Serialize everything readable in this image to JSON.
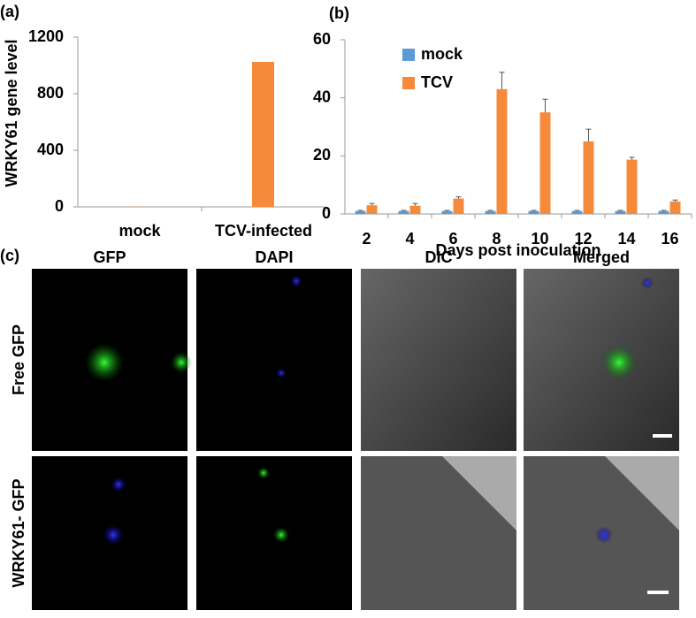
{
  "chart_data": [
    {
      "type": "bar",
      "panel_label": "(a)",
      "y_label": "WRKY61 gene level",
      "categories": [
        "mock",
        "TCV-infected"
      ],
      "values": [
        1,
        1025
      ],
      "color": "#f58b3a",
      "ylim": [
        0,
        1200
      ],
      "yticks": [
        0,
        400,
        800,
        1200
      ]
    },
    {
      "type": "bar",
      "panel_label": "(b)",
      "x_label": "Days post inoculation",
      "categories": [
        "2",
        "4",
        "6",
        "8",
        "10",
        "12",
        "14",
        "16"
      ],
      "series": [
        {
          "name": "mock",
          "color": "#5b9bd5",
          "values": [
            1,
            1,
            1,
            1,
            1,
            1,
            1,
            1
          ],
          "errors": [
            0.2,
            0.2,
            0.2,
            0.2,
            0.2,
            0.2,
            0.2,
            0.2
          ]
        },
        {
          "name": "TCV",
          "color": "#f58b3a",
          "values": [
            3,
            2.8,
            5.3,
            43,
            35,
            25,
            18.7,
            4.3
          ],
          "errors": [
            0.6,
            0.8,
            0.6,
            5.8,
            4.5,
            4.2,
            0.8,
            0.5
          ]
        }
      ],
      "ylim": [
        0,
        60
      ],
      "yticks": [
        0,
        20,
        40,
        60
      ],
      "legend": "upper-left"
    }
  ],
  "figure": {
    "panel_label": "(c)",
    "columns": [
      "GFP",
      "DAPI",
      "DIC",
      "Merged"
    ],
    "rows": [
      "Free GFP",
      "WRKY61- GFP"
    ]
  }
}
